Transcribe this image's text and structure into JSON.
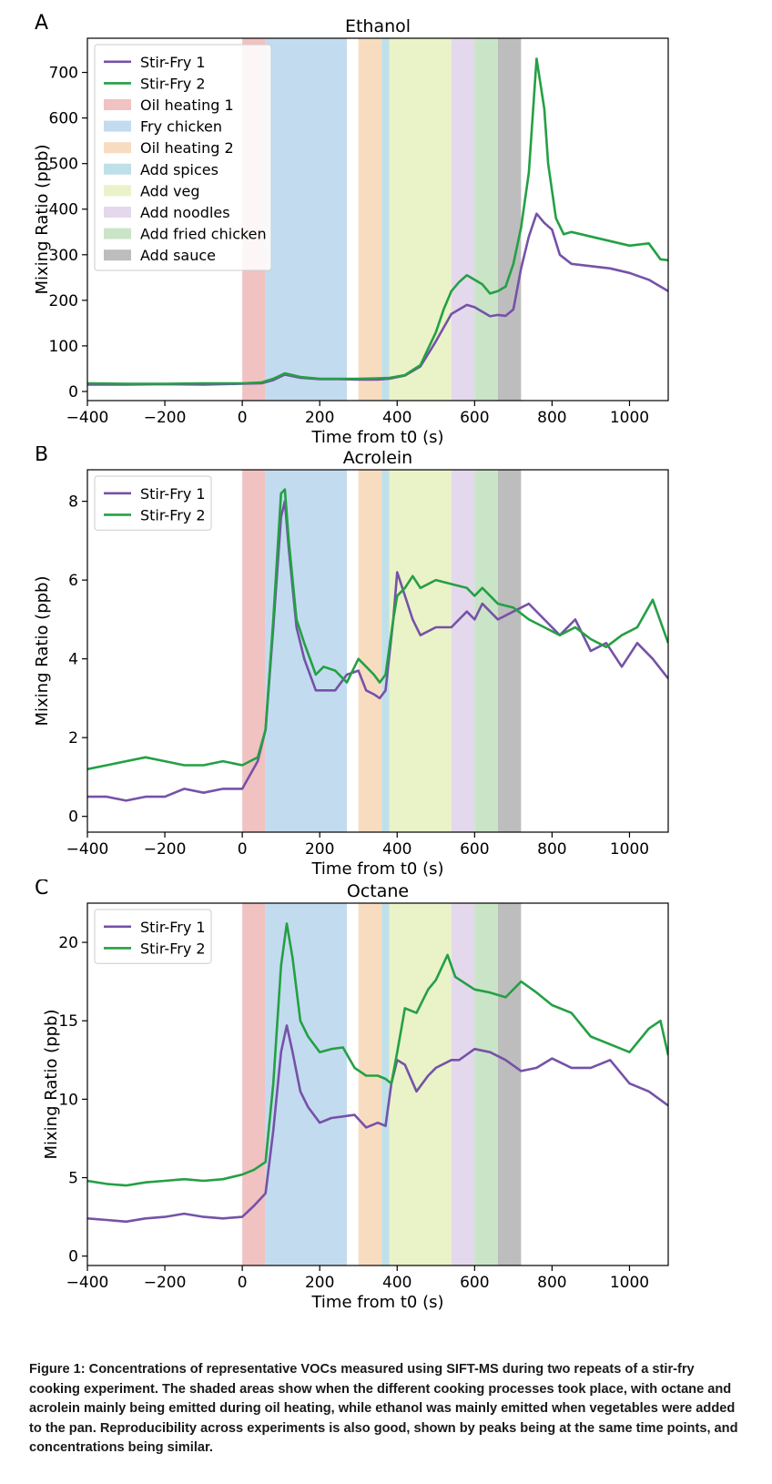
{
  "figure": {
    "caption": "Figure 1: Concentrations of representative VOCs measured using SIFT-MS during two repeats of a stir-fry cooking experiment. The shaded areas show when the different cooking processes took place, with octane and acrolein mainly being emitted during oil heating, while ethanol was mainly emitted when vegetables were added to the pan. Reproducibility across experiments is also good, shown by peaks being at the same time points, and concentrations being similar."
  },
  "colors": {
    "stir_fry_1": "#7552a8",
    "stir_fry_2": "#24a044"
  },
  "phases": [
    {
      "name": "Oil heating 1",
      "start": 0,
      "end": 60,
      "color": "#f0c2c2"
    },
    {
      "name": "Fry chicken",
      "start": 60,
      "end": 270,
      "color": "#c3dbef"
    },
    {
      "name": "Oil heating 2",
      "start": 300,
      "end": 360,
      "color": "#f8dcc0"
    },
    {
      "name": "Add spices",
      "start": 360,
      "end": 380,
      "color": "#bfe0e8"
    },
    {
      "name": "Add veg",
      "start": 380,
      "end": 540,
      "color": "#eaf2c8"
    },
    {
      "name": "Add noodles",
      "start": 540,
      "end": 600,
      "color": "#e4d8ec"
    },
    {
      "name": "Add fried chicken",
      "start": 600,
      "end": 660,
      "color": "#cae4c8"
    },
    {
      "name": "Add sauce",
      "start": 660,
      "end": 720,
      "color": "#bdbdbd"
    }
  ],
  "chart_data": [
    {
      "panel_letter": "A",
      "type": "line",
      "title": "Ethanol",
      "xlabel": "Time from t0 (s)",
      "ylabel": "Mixing Ratio (ppb)",
      "xlim": [
        -400,
        1100
      ],
      "ylim": [
        -20,
        775
      ],
      "xticks": [
        -400,
        -200,
        0,
        200,
        400,
        600,
        800,
        1000
      ],
      "xtick_labels": [
        "−400",
        "−200",
        "0",
        "200",
        "400",
        "600",
        "800",
        "1000"
      ],
      "yticks": [
        0,
        100,
        200,
        300,
        400,
        500,
        600,
        700
      ],
      "ytick_labels": [
        "0",
        "100",
        "200",
        "300",
        "400",
        "500",
        "600",
        "700"
      ],
      "legend": "top-left",
      "legend_shows_phases": true,
      "series": [
        {
          "name": "Stir-Fry 1",
          "x": [
            -400,
            -300,
            -200,
            -100,
            0,
            50,
            80,
            110,
            150,
            200,
            250,
            300,
            350,
            380,
            420,
            460,
            500,
            540,
            560,
            580,
            600,
            620,
            640,
            660,
            680,
            700,
            720,
            740,
            760,
            780,
            800,
            820,
            850,
            900,
            950,
            1000,
            1050,
            1100
          ],
          "y": [
            15,
            15,
            16,
            15,
            17,
            18,
            25,
            37,
            30,
            27,
            27,
            26,
            26,
            28,
            35,
            55,
            110,
            170,
            180,
            190,
            185,
            175,
            165,
            168,
            166,
            180,
            270,
            340,
            390,
            370,
            355,
            300,
            280,
            275,
            270,
            260,
            245,
            220
          ]
        },
        {
          "name": "Stir-Fry 2",
          "x": [
            -400,
            -300,
            -200,
            -100,
            0,
            50,
            80,
            110,
            150,
            200,
            250,
            300,
            350,
            380,
            420,
            460,
            500,
            520,
            540,
            560,
            580,
            600,
            620,
            640,
            660,
            680,
            700,
            720,
            740,
            760,
            780,
            790,
            810,
            830,
            850,
            900,
            950,
            1000,
            1050,
            1080,
            1100
          ],
          "y": [
            18,
            17,
            17,
            18,
            18,
            20,
            28,
            40,
            32,
            28,
            28,
            28,
            29,
            30,
            36,
            58,
            130,
            180,
            220,
            240,
            255,
            245,
            235,
            215,
            220,
            230,
            280,
            360,
            480,
            730,
            620,
            500,
            380,
            345,
            350,
            340,
            330,
            320,
            325,
            290,
            288
          ]
        }
      ]
    },
    {
      "panel_letter": "B",
      "type": "line",
      "title": "Acrolein",
      "xlabel": "Time from t0 (s)",
      "ylabel": "Mixing Ratio (ppb)",
      "xlim": [
        -400,
        1100
      ],
      "ylim": [
        -0.4,
        8.8
      ],
      "xticks": [
        -400,
        -200,
        0,
        200,
        400,
        600,
        800,
        1000
      ],
      "xtick_labels": [
        "−400",
        "−200",
        "0",
        "200",
        "400",
        "600",
        "800",
        "1000"
      ],
      "yticks": [
        0,
        2,
        4,
        6,
        8
      ],
      "ytick_labels": [
        "0",
        "2",
        "4",
        "6",
        "8"
      ],
      "legend": "top-left",
      "legend_shows_phases": false,
      "series": [
        {
          "name": "Stir-Fry 1",
          "x": [
            -400,
            -350,
            -300,
            -250,
            -200,
            -150,
            -100,
            -50,
            0,
            40,
            60,
            80,
            100,
            110,
            120,
            140,
            160,
            190,
            210,
            240,
            270,
            300,
            320,
            340,
            355,
            370,
            390,
            400,
            420,
            440,
            460,
            500,
            540,
            580,
            600,
            620,
            660,
            700,
            740,
            780,
            820,
            860,
            900,
            940,
            980,
            1020,
            1060,
            1100
          ],
          "y": [
            0.5,
            0.5,
            0.4,
            0.5,
            0.5,
            0.7,
            0.6,
            0.7,
            0.7,
            1.4,
            2.2,
            4.8,
            7.6,
            8.0,
            6.8,
            4.8,
            4.0,
            3.2,
            3.2,
            3.2,
            3.6,
            3.7,
            3.2,
            3.1,
            3.0,
            3.2,
            5.0,
            6.2,
            5.6,
            5.0,
            4.6,
            4.8,
            4.8,
            5.2,
            5.0,
            5.4,
            5.0,
            5.2,
            5.4,
            5.0,
            4.6,
            5.0,
            4.2,
            4.4,
            3.8,
            4.4,
            4.0,
            3.5
          ]
        },
        {
          "name": "Stir-Fry 2",
          "x": [
            -400,
            -350,
            -300,
            -250,
            -200,
            -150,
            -100,
            -50,
            0,
            40,
            60,
            80,
            100,
            110,
            120,
            140,
            160,
            190,
            210,
            240,
            270,
            300,
            320,
            340,
            355,
            370,
            390,
            400,
            420,
            440,
            460,
            500,
            540,
            580,
            600,
            620,
            660,
            700,
            740,
            780,
            820,
            860,
            900,
            940,
            980,
            1020,
            1060,
            1100
          ],
          "y": [
            1.2,
            1.3,
            1.4,
            1.5,
            1.4,
            1.3,
            1.3,
            1.4,
            1.3,
            1.5,
            2.2,
            5.0,
            8.2,
            8.3,
            7.0,
            5.0,
            4.4,
            3.6,
            3.8,
            3.7,
            3.4,
            4.0,
            3.8,
            3.6,
            3.4,
            3.6,
            5.0,
            5.6,
            5.8,
            6.1,
            5.8,
            6.0,
            5.9,
            5.8,
            5.6,
            5.8,
            5.4,
            5.3,
            5.0,
            4.8,
            4.6,
            4.8,
            4.5,
            4.3,
            4.6,
            4.8,
            5.5,
            4.4
          ]
        }
      ]
    },
    {
      "panel_letter": "C",
      "type": "line",
      "title": "Octane",
      "xlabel": "Time from t0 (s)",
      "ylabel": "Mixing Ratio (ppb)",
      "xlim": [
        -400,
        1100
      ],
      "ylim": [
        -0.6,
        22.5
      ],
      "xticks": [
        -400,
        -200,
        0,
        200,
        400,
        600,
        800,
        1000
      ],
      "xtick_labels": [
        "−400",
        "−200",
        "0",
        "200",
        "400",
        "600",
        "800",
        "1000"
      ],
      "yticks": [
        0,
        5,
        10,
        15,
        20
      ],
      "ytick_labels": [
        "0",
        "5",
        "10",
        "15",
        "20"
      ],
      "legend": "top-left",
      "legend_shows_phases": false,
      "series": [
        {
          "name": "Stir-Fry 1",
          "x": [
            -400,
            -350,
            -300,
            -250,
            -200,
            -150,
            -100,
            -50,
            0,
            30,
            60,
            80,
            100,
            115,
            130,
            150,
            170,
            200,
            230,
            260,
            290,
            320,
            350,
            370,
            385,
            400,
            420,
            450,
            480,
            500,
            540,
            560,
            600,
            640,
            680,
            720,
            760,
            800,
            850,
            900,
            950,
            1000,
            1050,
            1100
          ],
          "y": [
            2.4,
            2.3,
            2.2,
            2.4,
            2.5,
            2.7,
            2.5,
            2.4,
            2.5,
            3.2,
            4.0,
            8.0,
            13.0,
            14.7,
            13.0,
            10.5,
            9.5,
            8.5,
            8.8,
            8.9,
            9.0,
            8.2,
            8.5,
            8.3,
            11.0,
            12.5,
            12.2,
            10.5,
            11.5,
            12.0,
            12.5,
            12.5,
            13.2,
            13.0,
            12.5,
            11.8,
            12.0,
            12.6,
            12.0,
            12.0,
            12.5,
            11.0,
            10.5,
            9.6
          ]
        },
        {
          "name": "Stir-Fry 2",
          "x": [
            -400,
            -350,
            -300,
            -250,
            -200,
            -150,
            -100,
            -50,
            0,
            30,
            60,
            80,
            100,
            115,
            130,
            150,
            170,
            200,
            230,
            260,
            290,
            320,
            350,
            370,
            385,
            400,
            420,
            450,
            480,
            500,
            530,
            550,
            600,
            640,
            680,
            720,
            760,
            800,
            850,
            900,
            950,
            1000,
            1050,
            1080,
            1100
          ],
          "y": [
            4.8,
            4.6,
            4.5,
            4.7,
            4.8,
            4.9,
            4.8,
            4.9,
            5.2,
            5.5,
            6.0,
            11.0,
            18.5,
            21.2,
            19.0,
            15.0,
            14.0,
            13.0,
            13.2,
            13.3,
            12.0,
            11.5,
            11.5,
            11.3,
            11.0,
            13.0,
            15.8,
            15.5,
            17.0,
            17.6,
            19.2,
            17.8,
            17.0,
            16.8,
            16.5,
            17.5,
            16.8,
            16.0,
            15.5,
            14.0,
            13.5,
            13.0,
            14.5,
            15.0,
            12.8
          ]
        }
      ]
    }
  ]
}
